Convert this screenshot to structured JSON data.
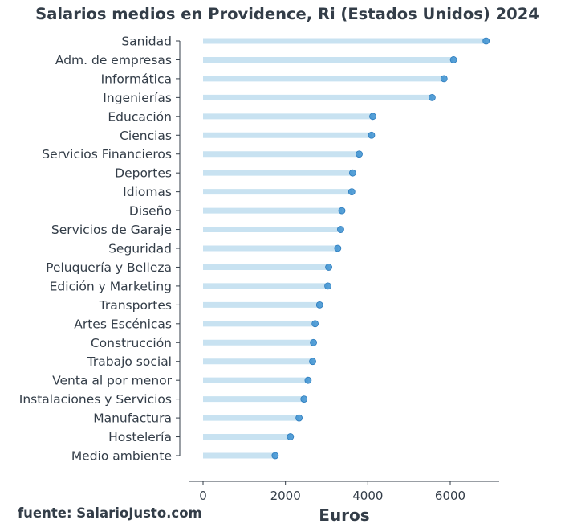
{
  "chart_data": {
    "type": "lollipop",
    "title": "Salarios medios en Providence, Ri (Estados Unidos) 2024",
    "xlabel": "Euros",
    "ylabel": "",
    "xlim": [
      -250,
      7200
    ],
    "xticks": [
      0,
      2000,
      4000,
      6000
    ],
    "categories": [
      "Sanidad",
      "Adm. de empresas",
      "Informática",
      "Ingenierías",
      "Educación",
      "Ciencias",
      "Servicios Financieros",
      "Deportes",
      "Idiomas",
      "Diseño",
      "Servicios de Garaje",
      "Seguridad",
      "Peluquería y Belleza",
      "Edición y Marketing",
      "Transportes",
      "Artes Escénicas",
      "Construcción",
      "Trabajo social",
      "Venta al por menor",
      "Instalaciones y Servicios",
      "Manufactura",
      "Hostelería",
      "Medio ambiente"
    ],
    "values": [
      6870,
      6080,
      5850,
      5560,
      4120,
      4090,
      3790,
      3630,
      3610,
      3370,
      3340,
      3270,
      3050,
      3030,
      2830,
      2720,
      2680,
      2660,
      2550,
      2450,
      2330,
      2120,
      1750
    ],
    "bar_color": "#c8e2f1",
    "dot_color": "#3a8fd0",
    "grid": false,
    "legend": "none"
  },
  "source": "fuente: SalarioJusto.com"
}
